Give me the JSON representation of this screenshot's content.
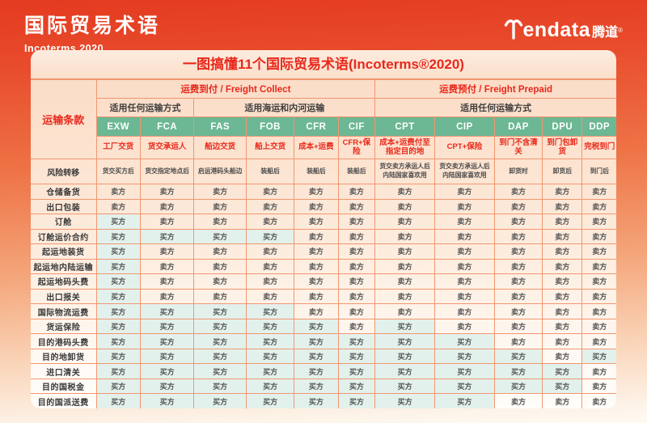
{
  "header": {
    "title": "国际贸易术语",
    "subtitle": "Incoterms 2020",
    "logo": {
      "latin": "endata",
      "cn": "腾道",
      "reg": "®"
    }
  },
  "card": {
    "title": "一图搞懂11个国际贸易术语(Incoterms®2020)"
  },
  "chart_data": {
    "type": "table",
    "title": "一图搞懂11个国际贸易术语(Incoterms®2020)",
    "corner_label": "运输条款",
    "freight_groups": [
      {
        "label": "运费到付 / Freight Collect",
        "span": 6
      },
      {
        "label": "运费预付 / Freight Prepaid",
        "span": 5
      }
    ],
    "transport_mode_groups": [
      {
        "label": "适用任何运输方式",
        "span": 2
      },
      {
        "label": "适用海运和内河运输",
        "span": 4
      },
      {
        "label": "适用任何运输方式",
        "span": 5
      }
    ],
    "columns": [
      {
        "code": "EXW",
        "name": "工厂交货",
        "risk": "货交买方后"
      },
      {
        "code": "FCA",
        "name": "货交承运人",
        "risk": "货交指定地点后"
      },
      {
        "code": "FAS",
        "name": "船边交货",
        "risk": "启运港码头船边"
      },
      {
        "code": "FOB",
        "name": "船上交货",
        "risk": "装船后"
      },
      {
        "code": "CFR",
        "name": "成本+运费",
        "risk": "装船后"
      },
      {
        "code": "CIF",
        "name": "CFR+保险",
        "risk": "装船后"
      },
      {
        "code": "CPT",
        "name": "成本+运费付至\n指定目的地",
        "risk": "货交卖方承运人后\n内陆国家喜欢用"
      },
      {
        "code": "CIP",
        "name": "CPT+保险",
        "risk": "货交卖方承运人后\n内陆国家喜欢用"
      },
      {
        "code": "DAP",
        "name": "到门不含清关",
        "risk": "卸货时"
      },
      {
        "code": "DPU",
        "name": "到门包卸货",
        "risk": "卸货后"
      },
      {
        "code": "DDP",
        "name": "完税到门",
        "risk": "到门后"
      }
    ],
    "risk_row_label": "风险转移",
    "legend": {
      "buyer": "买方",
      "seller": "卖方"
    },
    "cost_rows": [
      {
        "label": "仓储备货",
        "cells": [
          "卖方",
          "卖方",
          "卖方",
          "卖方",
          "卖方",
          "卖方",
          "卖方",
          "卖方",
          "卖方",
          "卖方",
          "卖方"
        ]
      },
      {
        "label": "出口包装",
        "cells": [
          "卖方",
          "卖方",
          "卖方",
          "卖方",
          "卖方",
          "卖方",
          "卖方",
          "卖方",
          "卖方",
          "卖方",
          "卖方"
        ]
      },
      {
        "label": "订舱",
        "cells": [
          "买方",
          "卖方",
          "卖方",
          "卖方",
          "卖方",
          "卖方",
          "卖方",
          "卖方",
          "卖方",
          "卖方",
          "卖方"
        ]
      },
      {
        "label": "订舱运价合约",
        "cells": [
          "买方",
          "买方",
          "买方",
          "买方",
          "卖方",
          "卖方",
          "卖方",
          "卖方",
          "卖方",
          "卖方",
          "卖方"
        ]
      },
      {
        "label": "起运地装货",
        "cells": [
          "买方",
          "卖方",
          "卖方",
          "卖方",
          "卖方",
          "卖方",
          "卖方",
          "卖方",
          "卖方",
          "卖方",
          "卖方"
        ]
      },
      {
        "label": "起运地内陆运输",
        "cells": [
          "买方",
          "卖方",
          "卖方",
          "卖方",
          "卖方",
          "卖方",
          "卖方",
          "卖方",
          "卖方",
          "卖方",
          "卖方"
        ]
      },
      {
        "label": "起运地码头费",
        "cells": [
          "买方",
          "卖方",
          "卖方",
          "卖方",
          "卖方",
          "卖方",
          "卖方",
          "卖方",
          "卖方",
          "卖方",
          "卖方"
        ]
      },
      {
        "label": "出口报关",
        "cells": [
          "买方",
          "卖方",
          "卖方",
          "卖方",
          "卖方",
          "卖方",
          "卖方",
          "卖方",
          "卖方",
          "卖方",
          "卖方"
        ]
      },
      {
        "label": "国际物流运费",
        "cells": [
          "买方",
          "买方",
          "买方",
          "买方",
          "卖方",
          "卖方",
          "卖方",
          "卖方",
          "卖方",
          "卖方",
          "卖方"
        ]
      },
      {
        "label": "货运保险",
        "cells": [
          "买方",
          "买方",
          "买方",
          "买方",
          "买方",
          "卖方",
          "买方",
          "卖方",
          "卖方",
          "卖方",
          "卖方"
        ]
      },
      {
        "label": "目的港码头费",
        "cells": [
          "买方",
          "买方",
          "买方",
          "买方",
          "买方",
          "买方",
          "买方",
          "买方",
          "卖方",
          "卖方",
          "卖方"
        ]
      },
      {
        "label": "目的地卸货",
        "cells": [
          "买方",
          "买方",
          "买方",
          "买方",
          "买方",
          "买方",
          "买方",
          "买方",
          "买方",
          "卖方",
          "买方"
        ]
      },
      {
        "label": "进口清关",
        "cells": [
          "买方",
          "买方",
          "买方",
          "买方",
          "买方",
          "买方",
          "买方",
          "买方",
          "买方",
          "买方",
          "卖方"
        ]
      },
      {
        "label": "目的国税金",
        "cells": [
          "买方",
          "买方",
          "买方",
          "买方",
          "买方",
          "买方",
          "买方",
          "买方",
          "买方",
          "买方",
          "卖方"
        ]
      },
      {
        "label": "目的国派送费",
        "cells": [
          "买方",
          "买方",
          "买方",
          "买方",
          "买方",
          "买方",
          "买方",
          "买方",
          "卖方",
          "卖方",
          "卖方"
        ]
      }
    ],
    "colors": {
      "accent_red": "#e8291c",
      "header_green": "#6cb794",
      "buyer_cell_bg": "#e3f1ed",
      "grid_border": "#f2976f",
      "banner_gradient_top": "#e43a20",
      "banner_gradient_bottom": "#fdf3e8"
    },
    "column_widths_pct": [
      11.2,
      7.5,
      9.2,
      8.9,
      8.2,
      7.5,
      6.3,
      10.2,
      10.2,
      8.2,
      6.8,
      5.8
    ]
  }
}
